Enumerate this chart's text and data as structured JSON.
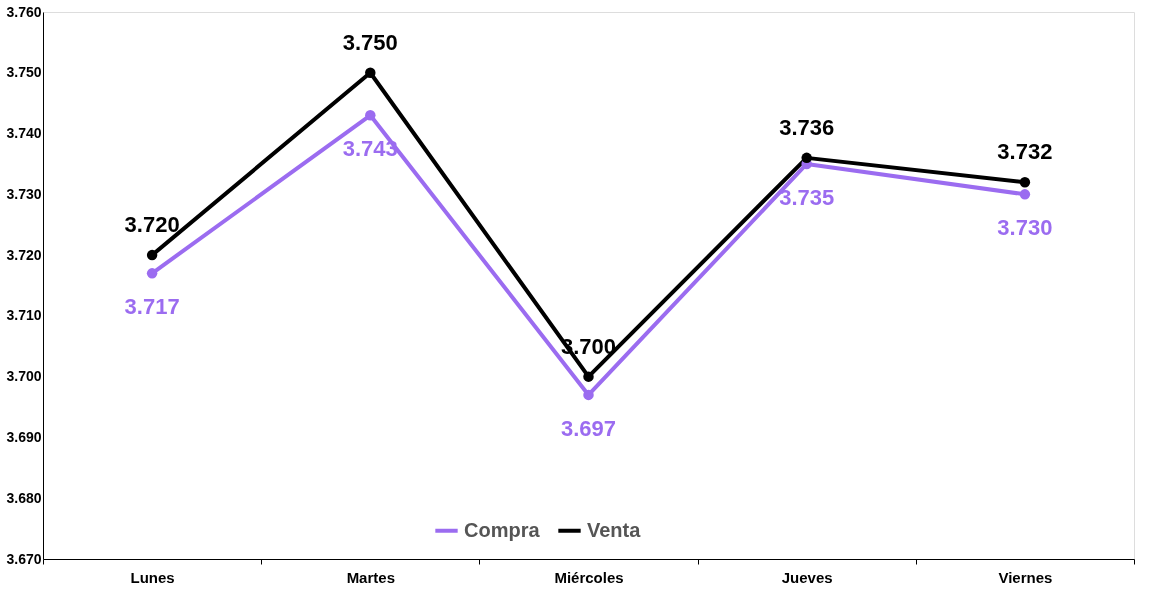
{
  "chart_data": {
    "type": "line",
    "categories": [
      "Lunes",
      "Martes",
      "Miércoles",
      "Jueves",
      "Viernes"
    ],
    "series": [
      {
        "name": "Compra",
        "color": "#9b6cf0",
        "values": [
          3.717,
          3.743,
          3.697,
          3.735,
          3.73
        ],
        "value_labels": [
          "3.717",
          "3.743",
          "3.697",
          "3.735",
          "3.730"
        ]
      },
      {
        "name": "Venta",
        "color": "#000000",
        "values": [
          3.72,
          3.75,
          3.7,
          3.736,
          3.732
        ],
        "value_labels": [
          "3.720",
          "3.750",
          "3.700",
          "3.736",
          "3.732"
        ]
      }
    ],
    "ylim": [
      3.67,
      3.76
    ],
    "yticks": [
      {
        "value": 3.67,
        "label": "3.670"
      },
      {
        "value": 3.68,
        "label": "3.680"
      },
      {
        "value": 3.69,
        "label": "3.690"
      },
      {
        "value": 3.7,
        "label": "3.700"
      },
      {
        "value": 3.71,
        "label": "3.710"
      },
      {
        "value": 3.72,
        "label": "3.720"
      },
      {
        "value": 3.73,
        "label": "3.730"
      },
      {
        "value": 3.74,
        "label": "3.740"
      },
      {
        "value": 3.75,
        "label": "3.750"
      },
      {
        "value": 3.76,
        "label": "3.760"
      }
    ],
    "grid": false,
    "legend": "bottom",
    "marker": "circle",
    "line_style": "solid"
  }
}
